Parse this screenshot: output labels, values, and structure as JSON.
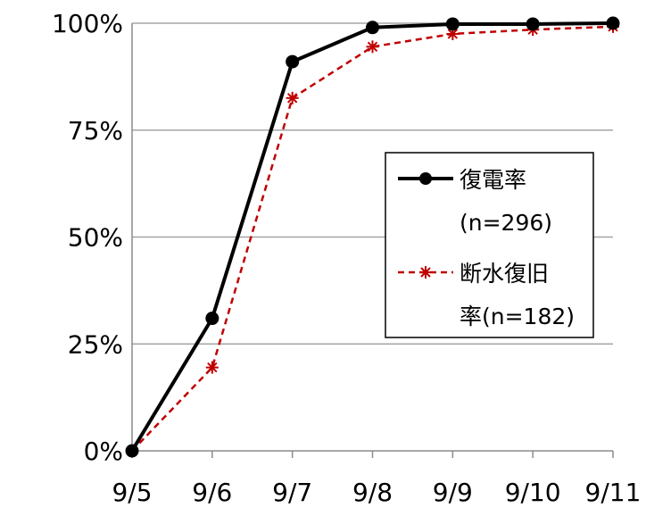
{
  "chart_data": {
    "type": "line",
    "categories": [
      "9/5",
      "9/6",
      "9/7",
      "9/8",
      "9/9",
      "9/10",
      "9/11"
    ],
    "y_ticks": [
      "0%",
      "25%",
      "50%",
      "75%",
      "100%"
    ],
    "ylim": [
      0,
      100
    ],
    "grid": "horizontal",
    "legend_position": "right",
    "series": [
      {
        "name_lines": [
          "復電率",
          "(n=296)"
        ],
        "values": [
          0,
          31,
          91,
          99,
          99.8,
          99.8,
          100
        ],
        "color": "#000000",
        "line_style": "solid",
        "marker": "circle"
      },
      {
        "name_lines": [
          "断水復旧",
          "率(n=182)"
        ],
        "values": [
          0,
          19.5,
          82.5,
          94.5,
          97.5,
          98.5,
          99.2
        ],
        "color": "#c00000",
        "line_style": "dashed",
        "marker": "asterisk"
      }
    ]
  }
}
